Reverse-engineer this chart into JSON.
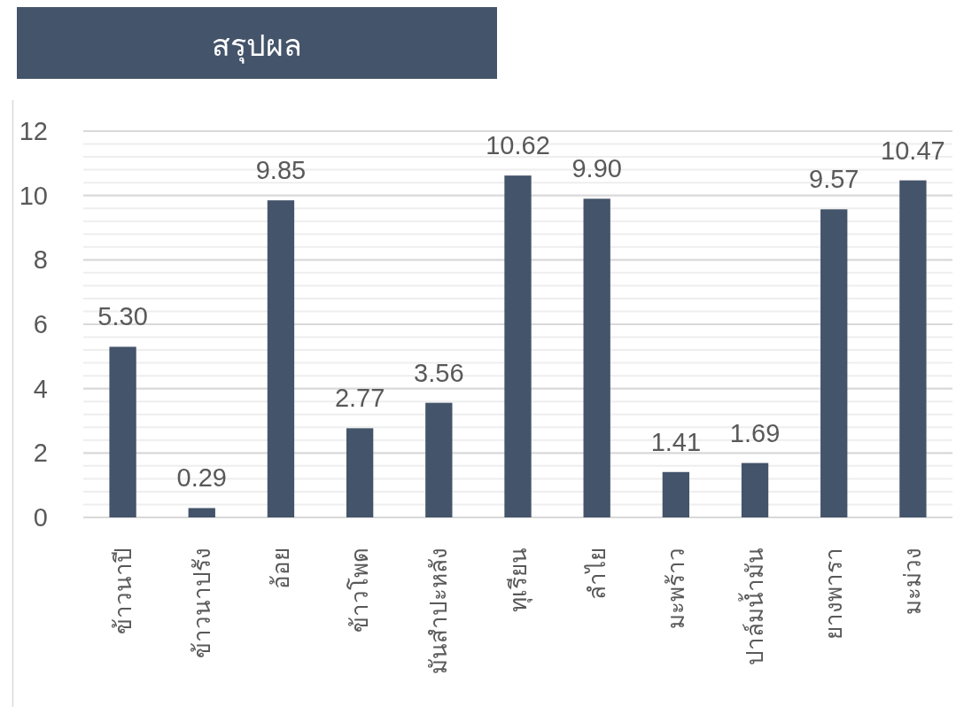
{
  "chart_data": {
    "type": "bar",
    "title": "สรุปผล",
    "categories": [
      "ข้าวนาปี",
      "ข้าวนาปรัง",
      "อ้อย",
      "ข้าวโพด",
      "มันสำปะหลัง",
      "ทุเรียน",
      "ลำไย",
      "มะพร้าว",
      "ปาล์มน้ำมัน",
      "ยางพารา",
      "มะม่วง"
    ],
    "values": [
      5.3,
      0.29,
      9.85,
      2.77,
      3.56,
      10.62,
      9.9,
      1.41,
      1.69,
      9.57,
      10.47
    ],
    "value_labels": [
      "5.30",
      "0.29",
      "9.85",
      "2.77",
      "3.56",
      "10.62",
      "9.90",
      "1.41",
      "1.69",
      "9.57",
      "10.47"
    ],
    "color": "#44546a",
    "ylim": [
      0,
      12
    ],
    "yticks": [
      0,
      {
        "value": 0.4,
        "label": null
      },
      {
        "value": 0.8,
        "label": null
      },
      {
        "value": 1.2,
        "label": null
      },
      {
        "value": 1.6,
        "label": null
      },
      2,
      {
        "value": 2.4,
        "label": null
      },
      {
        "value": 2.8,
        "label": null
      },
      {
        "value": 3.2,
        "label": null
      },
      {
        "value": 3.6,
        "label": null
      },
      4,
      {
        "value": 4.4,
        "label": null
      },
      {
        "value": 4.8,
        "label": null
      },
      {
        "value": 5.2,
        "label": null
      },
      {
        "value": 5.6,
        "label": null
      },
      6,
      {
        "value": 6.4,
        "label": null
      },
      {
        "value": 6.8,
        "label": null
      },
      {
        "value": 7.2,
        "label": null
      },
      {
        "value": 7.6,
        "label": null
      },
      8,
      {
        "value": 8.4,
        "label": null
      },
      {
        "value": 8.8,
        "label": null
      },
      {
        "value": 9.2,
        "label": null
      },
      {
        "value": 9.6,
        "label": null
      },
      10,
      {
        "value": 10.4,
        "label": null
      },
      {
        "value": 10.8,
        "label": null
      },
      {
        "value": 11.2,
        "label": null
      },
      {
        "value": 11.6,
        "label": null
      },
      12
    ],
    "grid": "y"
  }
}
